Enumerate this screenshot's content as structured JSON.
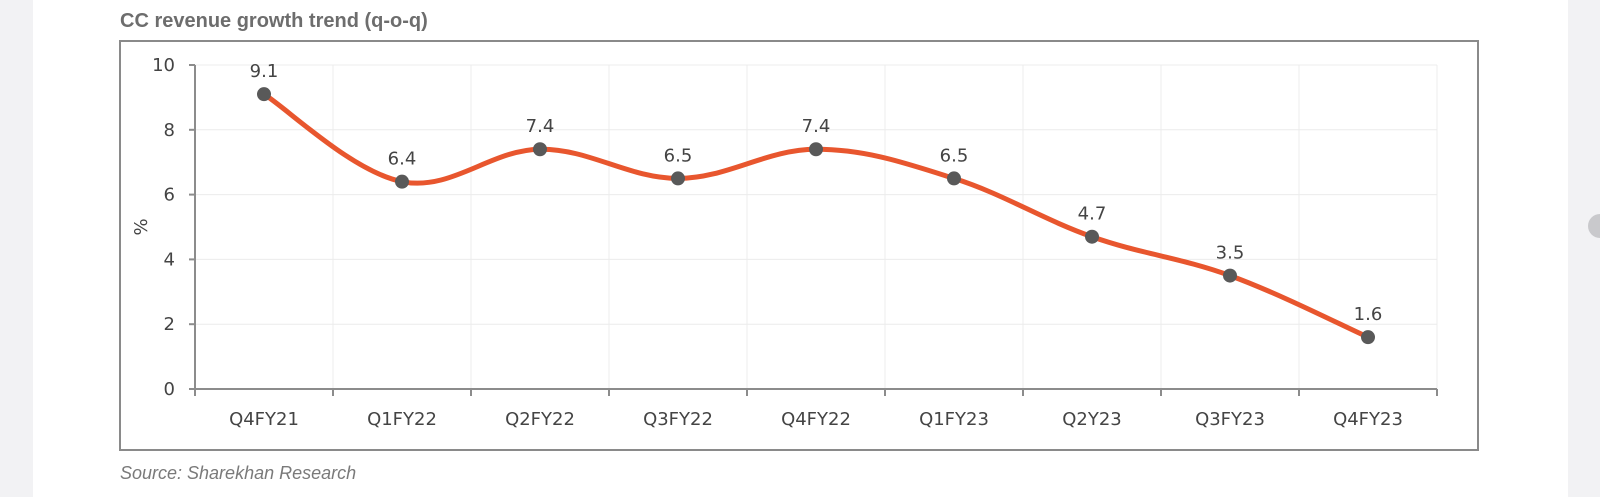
{
  "chart": {
    "title": "CC revenue growth trend (q-o-q)",
    "source": "Source: Sharekhan Research"
  },
  "colors": {
    "line": "#e8562e",
    "marker": "#595959",
    "axis": "#8c8c8c",
    "grid": "#ececec",
    "frame": "#8a8a8a",
    "text": "#444444"
  },
  "chart_data": {
    "type": "line",
    "title": "CC revenue growth trend (q-o-q)",
    "xlabel": "",
    "ylabel": "%",
    "categories": [
      "Q4FY21",
      "Q1FY22",
      "Q2FY22",
      "Q3FY22",
      "Q4FY22",
      "Q1FY23",
      "Q2Y23",
      "Q3FY23",
      "Q4FY23"
    ],
    "series": [
      {
        "values": [
          9.1,
          6.4,
          7.4,
          6.5,
          7.4,
          6.5,
          4.7,
          3.5,
          1.6
        ],
        "data_labels": [
          "9.1",
          "6.4",
          "7.4",
          "6.5",
          "7.4",
          "6.5",
          "4.7",
          "3.5",
          "1.6"
        ]
      }
    ],
    "ylim": [
      0,
      10
    ],
    "yticks": [
      0,
      2,
      4,
      6,
      8,
      10
    ],
    "ytick_labels": [
      "0",
      "2",
      "4",
      "6",
      "8",
      "10"
    ],
    "grid": true,
    "smooth": true,
    "legend": "none"
  }
}
